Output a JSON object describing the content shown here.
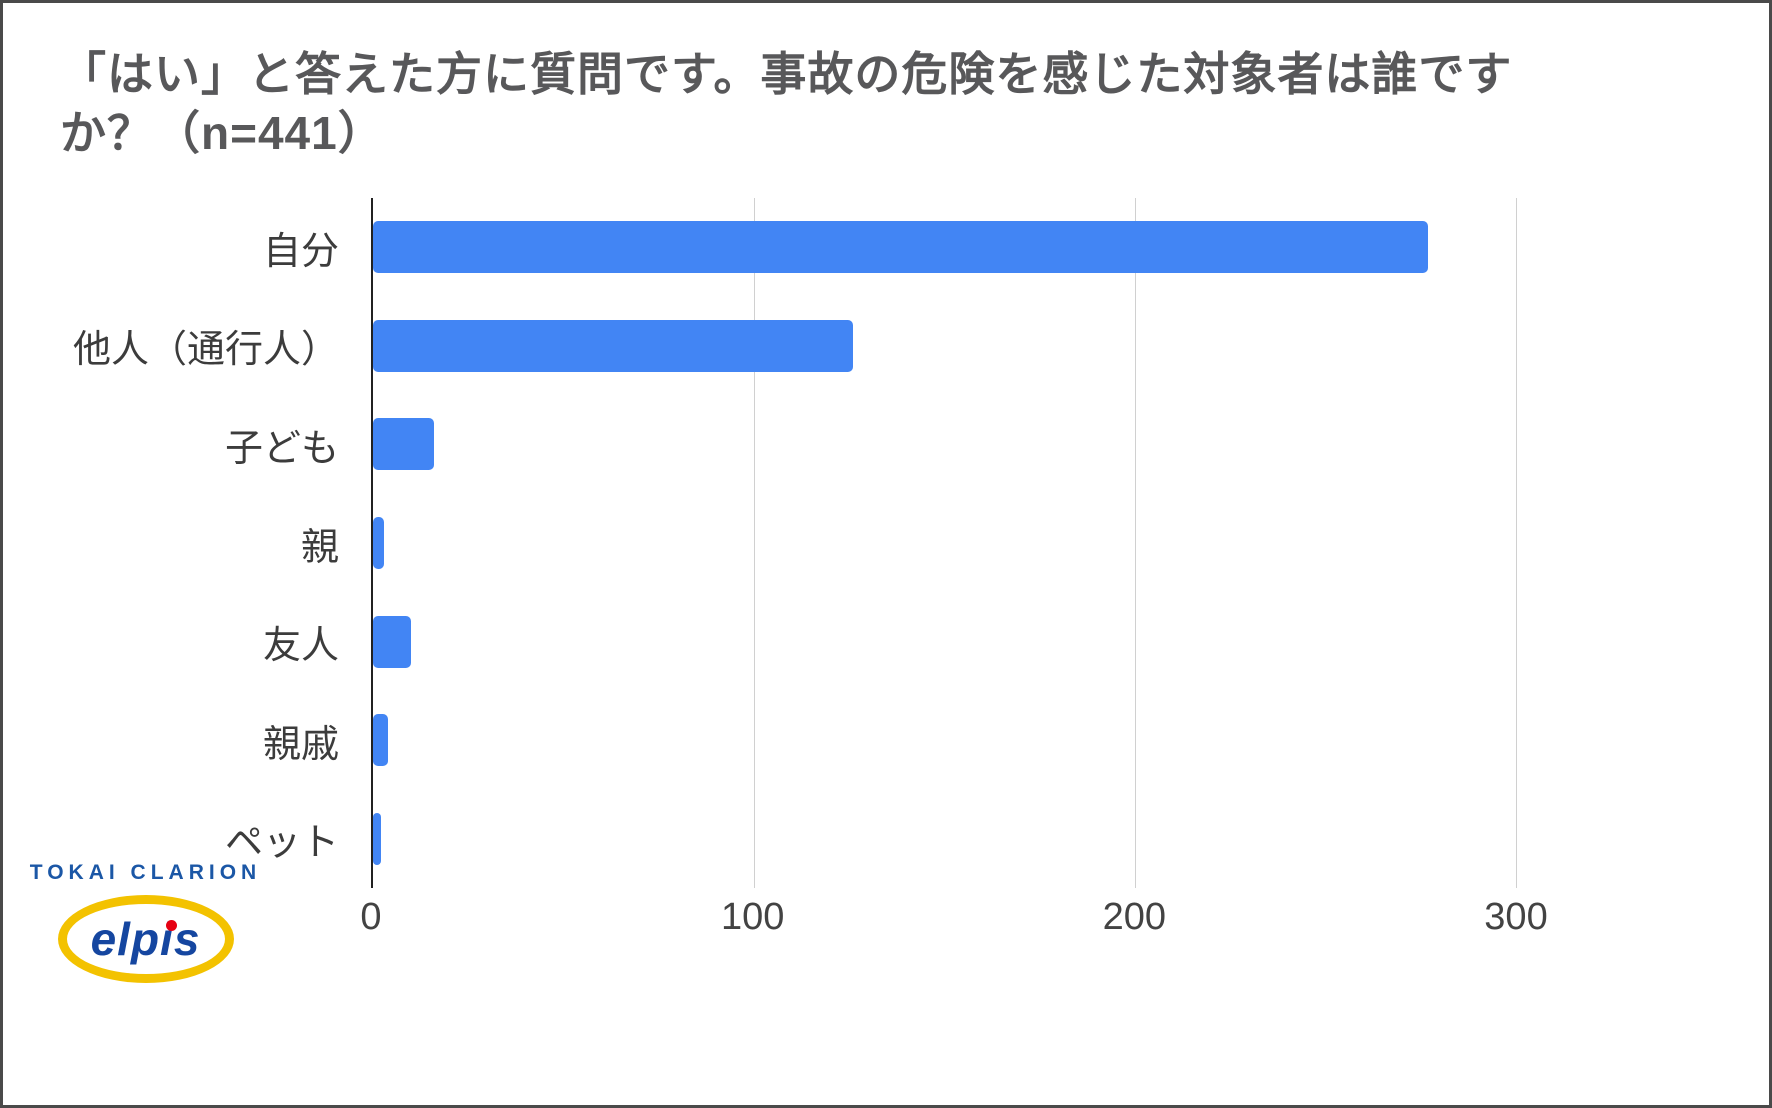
{
  "title": "「はい」と答えた方に質問です。事故の危険を感じた対象者は誰ですか？（n=441）",
  "chart_data": {
    "type": "bar",
    "orientation": "horizontal",
    "title": "「はい」と答えた方に質問です。事故の危険を感じた対象者は誰ですか？（n=441）",
    "categories": [
      "自分",
      "他人（通行人）",
      "子ども",
      "親",
      "友人",
      "親戚",
      "ペット"
    ],
    "values": [
      277,
      126,
      16,
      3,
      10,
      4,
      2
    ],
    "xlabel": "",
    "ylabel": "",
    "xlim": [
      0,
      300
    ],
    "x_ticks": [
      0,
      100,
      200,
      300
    ],
    "grid": true,
    "legend": "none",
    "bar_color": "#4285f4",
    "n": 441
  },
  "logo": {
    "company": "TOKAI CLARION",
    "brand": "elpis"
  },
  "colors": {
    "bar": "#4285f4",
    "title_text": "#58585a",
    "axis_line": "#212121",
    "gridline": "#d0d0d0",
    "logo_blue": "#1b57a6",
    "logo_yellow": "#f3c200",
    "logo_red": "#e60012"
  }
}
